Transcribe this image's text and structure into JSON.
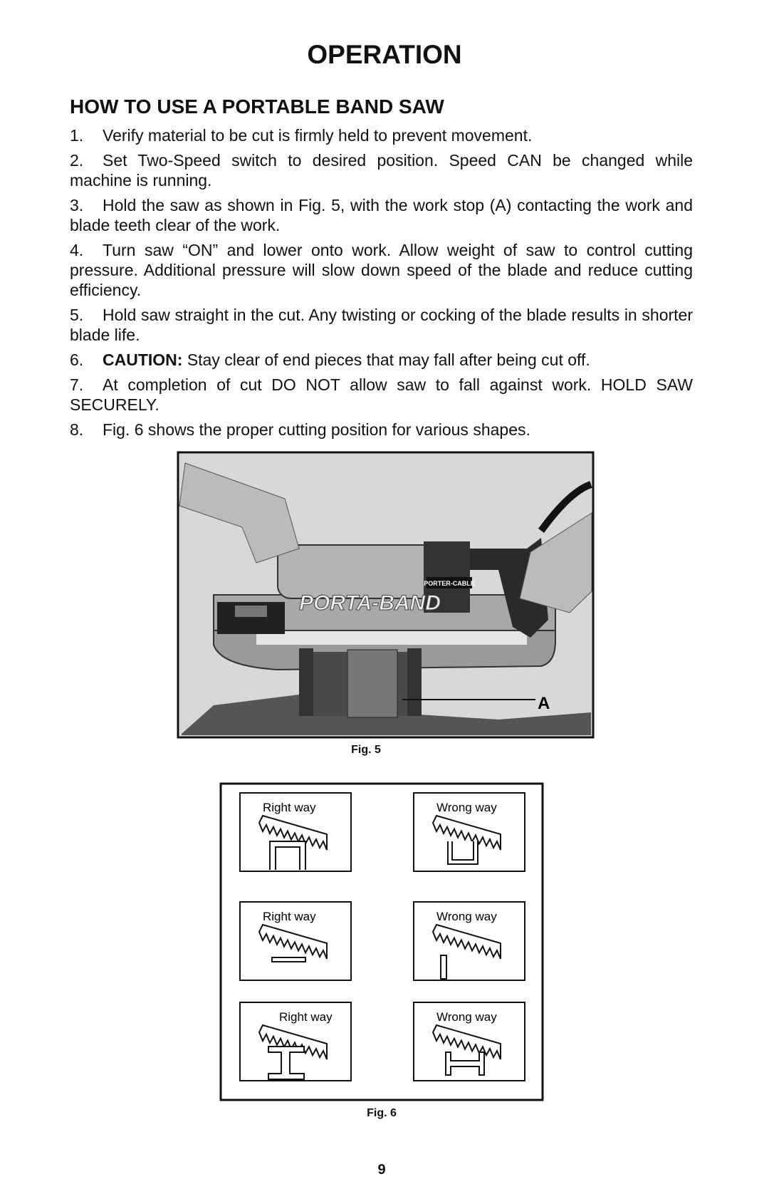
{
  "title": "OPERATION",
  "section": {
    "heading": "HOW TO USE A PORTABLE BAND SAW",
    "steps": [
      {
        "number": "1.",
        "text": "Verify material to be cut is firmly held to prevent movement."
      },
      {
        "number": "2.",
        "text": "Set Two-Speed switch to desired position. Speed CAN be changed while machine is running."
      },
      {
        "number": "3.",
        "text": "Hold the saw as shown in Fig. 5, with the work stop (A) contacting the work and blade teeth clear of the work."
      },
      {
        "number": "4.",
        "text": "Turn saw “ON” and lower onto work. Allow weight of saw to control cutting pressure. Additional pressure will slow down speed of the blade and reduce cutting efficiency."
      },
      {
        "number": "5.",
        "text": "Hold saw straight in the cut. Any twisting or cocking of the blade results in shorter blade life."
      },
      {
        "number": "6.",
        "label": "CAUTION:",
        "text": "Stay clear of end pieces that may fall after being cut off."
      },
      {
        "number": "7.",
        "text": "At completion of cut DO NOT allow saw to fall against work. HOLD SAW SECURELY."
      },
      {
        "number": "8.",
        "text": "Fig. 6 shows the proper cutting position for various shapes."
      }
    ]
  },
  "figure_5": {
    "photo_texts": [
      "PORTA-BAND",
      "PORTER-CABLE"
    ],
    "callout": "A",
    "caption": "Fig. 5"
  },
  "figure_6": {
    "panels": [
      "Right way",
      "Wrong way",
      "Right way",
      "Wrong way",
      "Right way",
      "Wrong way"
    ],
    "caption": "Fig. 6"
  },
  "page_number": "9"
}
